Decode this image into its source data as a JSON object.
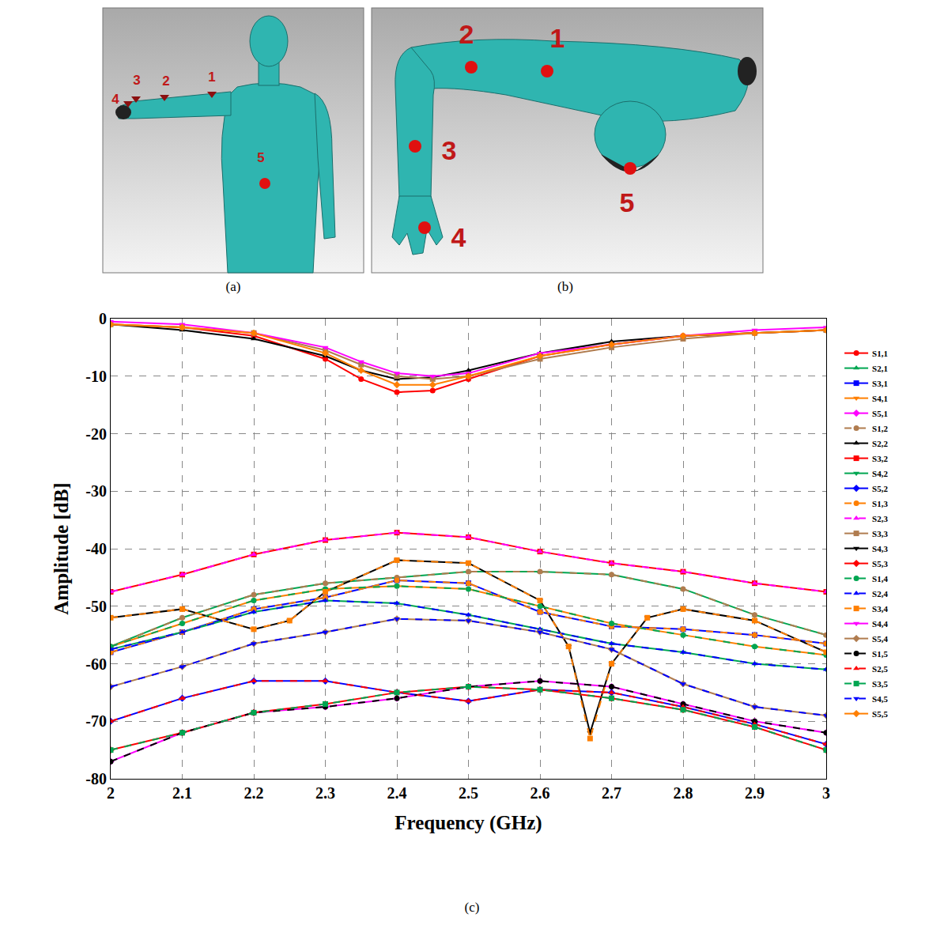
{
  "figure": {
    "panels": [
      {
        "caption": "(a)",
        "points": [
          "1",
          "2",
          "3",
          "4",
          "5"
        ]
      },
      {
        "caption": "(b)",
        "points": [
          "1",
          "2",
          "3",
          "4",
          "5"
        ]
      }
    ]
  },
  "chart_data": {
    "type": "line",
    "caption": "(c)",
    "x_label": "Frequency (GHz)",
    "y_label": "Amplitude [dB]",
    "x": [
      2,
      2.1,
      2.2,
      2.3,
      2.4,
      2.5,
      2.6,
      2.7,
      2.8,
      2.9,
      3
    ],
    "xlim": [
      2,
      3
    ],
    "xticks": [
      2,
      2.1,
      2.2,
      2.3,
      2.4,
      2.5,
      2.6,
      2.7,
      2.8,
      2.9,
      3
    ],
    "ylim": [
      -80,
      0
    ],
    "yticks": [
      -80,
      -70,
      -60,
      -50,
      -40,
      -30,
      -20,
      -10,
      0
    ],
    "grid": true,
    "legend": "right",
    "series": [
      {
        "name": "S1,1",
        "color": "#ff0000",
        "marker": "circle",
        "line_style": "solid",
        "x": [
          2,
          2.1,
          2.2,
          2.3,
          2.35,
          2.4,
          2.45,
          2.5,
          2.6,
          2.7,
          2.8,
          2.9,
          3
        ],
        "values": [
          -1,
          -1.5,
          -3,
          -7,
          -10.5,
          -12.8,
          -12.5,
          -10.5,
          -6.5,
          -4.5,
          -3,
          -2.5,
          -2
        ]
      },
      {
        "name": "S2,1",
        "color": "#00a651",
        "marker": "triangle-up",
        "line_style": "solid",
        "values": [
          -57,
          -52,
          -48,
          -46,
          -45,
          -44,
          -44,
          -44.5,
          -47,
          -51.5,
          -55
        ]
      },
      {
        "name": "S3,1",
        "color": "#0000ff",
        "marker": "square",
        "line_style": "solid",
        "values": [
          -58,
          -54.5,
          -50.5,
          -48.5,
          -45.5,
          -46,
          -51,
          -53.5,
          -54,
          -55,
          -56.5
        ]
      },
      {
        "name": "S4,1",
        "color": "#ff7f00",
        "marker": "triangle-down",
        "line_style": "solid",
        "values": [
          -57,
          -53,
          -49,
          -47,
          -46.5,
          -47,
          -50,
          -53,
          -55,
          -57,
          -58.5
        ]
      },
      {
        "name": "S5,1",
        "color": "#ff00ff",
        "marker": "diamond",
        "line_style": "solid",
        "values": [
          -77,
          -72,
          -68.5,
          -67.5,
          -66,
          -64,
          -63,
          -64,
          -67,
          -70,
          -72
        ]
      },
      {
        "name": "S1,2",
        "color": "#b07c4f",
        "marker": "circle",
        "line_style": "dash",
        "values": [
          -57,
          -52,
          -48,
          -46,
          -45,
          -44,
          -44,
          -44.5,
          -47,
          -51.5,
          -55
        ]
      },
      {
        "name": "S2,2",
        "color": "#000000",
        "marker": "triangle-up",
        "line_style": "solid",
        "x": [
          2,
          2.1,
          2.2,
          2.3,
          2.35,
          2.4,
          2.45,
          2.5,
          2.6,
          2.7,
          2.8,
          2.9,
          3
        ],
        "values": [
          -1,
          -2,
          -3.5,
          -6.5,
          -9,
          -10.5,
          -10.2,
          -9,
          -6,
          -4,
          -3,
          -2.5,
          -2
        ]
      },
      {
        "name": "S3,2",
        "color": "#ff0000",
        "marker": "square",
        "line_style": "solid",
        "values": [
          -47.5,
          -44.5,
          -41,
          -38.5,
          -37.2,
          -38,
          -40.5,
          -42.5,
          -44,
          -46,
          -47.5
        ]
      },
      {
        "name": "S4,2",
        "color": "#00a651",
        "marker": "triangle-down",
        "line_style": "solid",
        "values": [
          -57.5,
          -54.5,
          -51,
          -49,
          -49.5,
          -51.5,
          -54,
          -56.5,
          -58,
          -60,
          -61
        ]
      },
      {
        "name": "S5,2",
        "color": "#0000ff",
        "marker": "diamond",
        "line_style": "solid",
        "values": [
          -70,
          -66,
          -63,
          -63,
          -65,
          -66.5,
          -64.5,
          -65,
          -67.5,
          -70.5,
          -74
        ]
      },
      {
        "name": "S1,3",
        "color": "#ff7f00",
        "marker": "circle",
        "line_style": "dash",
        "values": [
          -58,
          -54.5,
          -50.5,
          -48.5,
          -45.5,
          -46,
          -51,
          -53.5,
          -54,
          -55,
          -56.5
        ]
      },
      {
        "name": "S2,3",
        "color": "#ff00ff",
        "marker": "triangle-up",
        "line_style": "dash",
        "values": [
          -47.5,
          -44.5,
          -41,
          -38.5,
          -37.2,
          -38,
          -40.5,
          -42.5,
          -44,
          -46,
          -47.5
        ]
      },
      {
        "name": "S3,3",
        "color": "#b07c4f",
        "marker": "square",
        "line_style": "solid",
        "x": [
          2,
          2.1,
          2.2,
          2.3,
          2.35,
          2.4,
          2.45,
          2.5,
          2.6,
          2.7,
          2.8,
          2.9,
          3
        ],
        "values": [
          -1,
          -1.5,
          -2.5,
          -5.5,
          -8,
          -10,
          -10.5,
          -10,
          -7,
          -5,
          -3.5,
          -2.5,
          -2
        ]
      },
      {
        "name": "S4,3",
        "color": "#000000",
        "marker": "triangle-down",
        "line_style": "solid",
        "x": [
          2,
          2.1,
          2.2,
          2.25,
          2.3,
          2.4,
          2.5,
          2.6,
          2.64,
          2.67,
          2.7,
          2.75,
          2.8,
          2.9,
          3
        ],
        "values": [
          -52,
          -50.5,
          -54,
          -52.5,
          -47.5,
          -42,
          -42.5,
          -49,
          -57,
          -72,
          -60,
          -52,
          -50.5,
          -52.5,
          -58
        ]
      },
      {
        "name": "S5,3",
        "color": "#ff0000",
        "marker": "diamond",
        "line_style": "solid",
        "values": [
          -75,
          -72,
          -68.5,
          -67,
          -65,
          -64,
          -64.5,
          -66,
          -68,
          -71,
          -75
        ]
      },
      {
        "name": "S1,4",
        "color": "#00a651",
        "marker": "circle",
        "line_style": "dash",
        "values": [
          -57,
          -53,
          -49,
          -47,
          -46.5,
          -47,
          -50,
          -53,
          -55,
          -57,
          -58.5
        ]
      },
      {
        "name": "S2,4",
        "color": "#0000ff",
        "marker": "triangle-up",
        "line_style": "dash",
        "values": [
          -57.5,
          -54.5,
          -51,
          -49,
          -49.5,
          -51.5,
          -54,
          -56.5,
          -58,
          -60,
          -61
        ]
      },
      {
        "name": "S3,4",
        "color": "#ff7f00",
        "marker": "square",
        "line_style": "dash",
        "x": [
          2,
          2.1,
          2.2,
          2.25,
          2.3,
          2.4,
          2.5,
          2.6,
          2.64,
          2.67,
          2.7,
          2.75,
          2.8,
          2.9,
          3
        ],
        "values": [
          -52,
          -50.5,
          -54,
          -52.5,
          -47.5,
          -42,
          -42.5,
          -49,
          -57,
          -73,
          -60,
          -52,
          -50.5,
          -52.5,
          -58
        ]
      },
      {
        "name": "S4,4",
        "color": "#ff00ff",
        "marker": "triangle-down",
        "line_style": "solid",
        "x": [
          2,
          2.1,
          2.2,
          2.3,
          2.35,
          2.4,
          2.45,
          2.5,
          2.6,
          2.7,
          2.8,
          2.9,
          3
        ],
        "values": [
          -0.5,
          -1,
          -2.5,
          -5,
          -7.5,
          -9.5,
          -10,
          -9.5,
          -6,
          -4.5,
          -3,
          -2,
          -1.5
        ]
      },
      {
        "name": "S5,4",
        "color": "#b07c4f",
        "marker": "diamond",
        "line_style": "solid",
        "values": [
          -64,
          -60.5,
          -56.5,
          -54.5,
          -52.2,
          -52.5,
          -54.5,
          -57.5,
          -63.5,
          -67.5,
          -69
        ]
      },
      {
        "name": "S1,5",
        "color": "#000000",
        "marker": "circle",
        "line_style": "dash",
        "values": [
          -77,
          -72,
          -68.5,
          -67.5,
          -66,
          -64,
          -63,
          -64,
          -67,
          -70,
          -72
        ]
      },
      {
        "name": "S2,5",
        "color": "#ff0000",
        "marker": "triangle-up",
        "line_style": "dash",
        "values": [
          -70,
          -66,
          -63,
          -63,
          -65,
          -66.5,
          -64.5,
          -65,
          -67.5,
          -70.5,
          -74
        ]
      },
      {
        "name": "S3,5",
        "color": "#00a651",
        "marker": "square",
        "line_style": "dash",
        "values": [
          -75,
          -72,
          -68.5,
          -67,
          -65,
          -64,
          -64.5,
          -66,
          -68,
          -71,
          -75
        ]
      },
      {
        "name": "S4,5",
        "color": "#0000ff",
        "marker": "triangle-down",
        "line_style": "dash",
        "values": [
          -64,
          -60.5,
          -56.5,
          -54.5,
          -52.2,
          -52.5,
          -54.5,
          -57.5,
          -63.5,
          -67.5,
          -69
        ]
      },
      {
        "name": "S5,5",
        "color": "#ff7f00",
        "marker": "diamond",
        "line_style": "solid",
        "x": [
          2,
          2.1,
          2.2,
          2.3,
          2.35,
          2.4,
          2.45,
          2.5,
          2.6,
          2.7,
          2.8,
          2.9,
          3
        ],
        "values": [
          -1,
          -1.5,
          -2.5,
          -6,
          -9,
          -11.5,
          -11.5,
          -10,
          -6.5,
          -4.5,
          -3,
          -2.5,
          -2
        ]
      }
    ]
  }
}
